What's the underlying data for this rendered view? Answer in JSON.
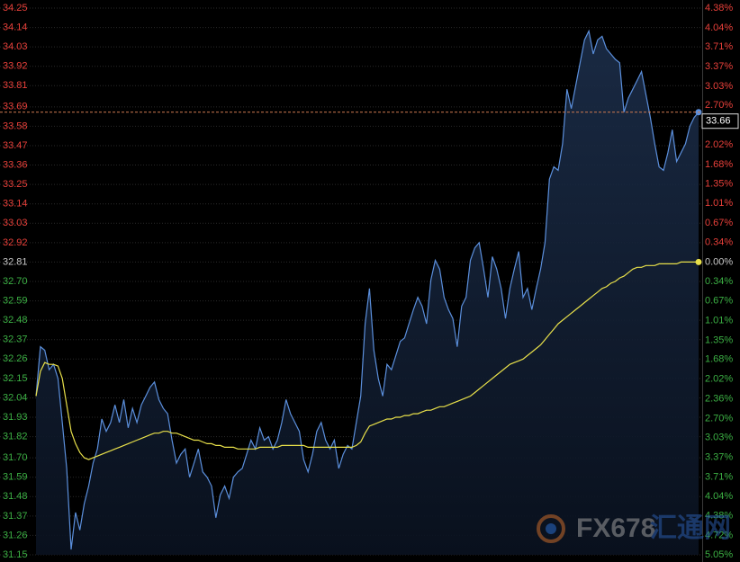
{
  "chart_data": {
    "type": "line",
    "ylim": [
      31.15,
      34.25
    ],
    "yticks": [
      34.25,
      34.14,
      34.03,
      33.92,
      33.81,
      33.69,
      33.58,
      33.47,
      33.36,
      33.25,
      33.14,
      33.03,
      32.92,
      32.81,
      {
        "value": 32.7,
        "label": "32.70"
      },
      32.59,
      32.48,
      32.37,
      32.26,
      32.15,
      32.04,
      31.93,
      31.82,
      {
        "value": 31.7,
        "label": "31.70"
      },
      31.59,
      31.48,
      31.37,
      31.26,
      31.15
    ],
    "y2lim": [
      -5.05,
      4.38
    ],
    "y2ticks": [
      {
        "value": 4.38,
        "label": "4.38%"
      },
      {
        "value": 4.04,
        "label": "4.04%"
      },
      {
        "value": 3.71,
        "label": "3.71%"
      },
      {
        "value": 3.37,
        "label": "3.37%"
      },
      {
        "value": 3.03,
        "label": "3.03%"
      },
      {
        "value": 2.7,
        "label": "2.70%"
      },
      {
        "value": 2.36,
        "label": "2.36%"
      },
      {
        "value": 2.02,
        "label": "2.02%"
      },
      {
        "value": 1.68,
        "label": "1.68%"
      },
      {
        "value": 1.35,
        "label": "1.35%"
      },
      {
        "value": 1.01,
        "label": "1.01%"
      },
      {
        "value": 0.67,
        "label": "0.67%"
      },
      {
        "value": 0.34,
        "label": "0.34%"
      },
      {
        "value": 0,
        "label": "0.00%"
      },
      {
        "value": -0.34,
        "label": "0.34%"
      },
      {
        "value": -0.67,
        "label": "0.67%"
      },
      {
        "value": -1.01,
        "label": "1.01%"
      },
      {
        "value": -1.35,
        "label": "1.35%"
      },
      {
        "value": -1.68,
        "label": "1.68%"
      },
      {
        "value": -2.02,
        "label": "2.02%"
      },
      {
        "value": -2.36,
        "label": "2.36%"
      },
      {
        "value": -2.7,
        "label": "2.70%"
      },
      {
        "value": -3.03,
        "label": "3.03%"
      },
      {
        "value": -3.37,
        "label": "3.37%"
      },
      {
        "value": -3.71,
        "label": "3.71%"
      },
      {
        "value": -4.04,
        "label": "4.04%"
      },
      {
        "value": -4.38,
        "label": "4.38%"
      },
      {
        "value": -4.72,
        "label": "4.72%"
      },
      {
        "value": -5.05,
        "label": "5.05%"
      }
    ],
    "up_color": "#e8403a",
    "down_color": "#3cb044",
    "flat_color": "#c8c8c8",
    "grid": true,
    "last_price": 33.66,
    "series": [
      {
        "color": "#5b8fdc",
        "fill": true,
        "values": [
          32.05,
          32.33,
          32.31,
          32.2,
          32.23,
          32.15,
          31.9,
          31.64,
          31.18,
          31.39,
          31.29,
          31.44,
          31.54,
          31.67,
          31.75,
          31.92,
          31.85,
          31.9,
          32.0,
          31.9,
          32.03,
          31.87,
          31.98,
          31.9,
          32.0,
          32.05,
          32.1,
          32.13,
          32.03,
          31.98,
          31.95,
          31.8,
          31.67,
          31.72,
          31.75,
          31.59,
          31.67,
          31.75,
          31.62,
          31.59,
          31.54,
          31.36,
          31.49,
          31.54,
          31.47,
          31.59,
          31.62,
          31.64,
          31.72,
          31.8,
          31.75,
          31.87,
          31.8,
          31.82,
          31.75,
          31.8,
          31.9,
          32.03,
          31.95,
          31.9,
          31.85,
          31.69,
          31.62,
          31.72,
          31.85,
          31.9,
          31.8,
          31.75,
          31.8,
          31.64,
          31.72,
          31.77,
          31.75,
          31.9,
          32.05,
          32.46,
          32.66,
          32.31,
          32.15,
          32.05,
          32.23,
          32.2,
          32.28,
          32.36,
          32.38,
          32.46,
          32.54,
          32.61,
          32.56,
          32.46,
          32.71,
          32.82,
          32.77,
          32.61,
          32.54,
          32.49,
          32.33,
          32.56,
          32.61,
          32.82,
          32.89,
          32.92,
          32.77,
          32.61,
          32.84,
          32.77,
          32.66,
          32.49,
          32.66,
          32.77,
          32.87,
          32.61,
          32.66,
          32.54,
          32.66,
          32.77,
          32.92,
          33.28,
          33.35,
          33.33,
          33.48,
          33.79,
          33.68,
          33.81,
          33.94,
          34.07,
          34.12,
          33.99,
          34.07,
          34.09,
          34.02,
          33.99,
          33.96,
          33.94,
          33.66,
          33.74,
          33.79,
          33.84,
          33.89,
          33.76,
          33.63,
          33.48,
          33.35,
          33.33,
          33.43,
          33.56,
          33.38,
          33.43,
          33.48,
          33.58,
          33.63,
          33.66
        ]
      },
      {
        "color": "#e8e04a",
        "fill": false,
        "values": [
          32.05,
          32.19,
          32.24,
          32.23,
          32.23,
          32.22,
          32.15,
          32.0,
          31.85,
          31.78,
          31.73,
          31.7,
          31.69,
          31.7,
          31.71,
          31.72,
          31.73,
          31.74,
          31.75,
          31.76,
          31.77,
          31.78,
          31.79,
          31.8,
          31.81,
          31.82,
          31.83,
          31.84,
          31.84,
          31.85,
          31.85,
          31.84,
          31.84,
          31.83,
          31.82,
          31.81,
          31.8,
          31.8,
          31.79,
          31.78,
          31.78,
          31.77,
          31.77,
          31.76,
          31.76,
          31.76,
          31.75,
          31.75,
          31.75,
          31.75,
          31.75,
          31.76,
          31.76,
          31.76,
          31.76,
          31.76,
          31.77,
          31.77,
          31.77,
          31.77,
          31.77,
          31.77,
          31.76,
          31.76,
          31.76,
          31.76,
          31.76,
          31.76,
          31.76,
          31.76,
          31.76,
          31.76,
          31.76,
          31.77,
          31.79,
          31.84,
          31.88,
          31.89,
          31.9,
          31.91,
          31.92,
          31.92,
          31.93,
          31.93,
          31.94,
          31.94,
          31.95,
          31.95,
          31.96,
          31.97,
          31.97,
          31.98,
          31.99,
          31.99,
          32.0,
          32.01,
          32.02,
          32.03,
          32.04,
          32.05,
          32.07,
          32.09,
          32.11,
          32.13,
          32.15,
          32.17,
          32.19,
          32.21,
          32.23,
          32.24,
          32.25,
          32.26,
          32.28,
          32.3,
          32.32,
          32.34,
          32.37,
          32.4,
          32.43,
          32.46,
          32.48,
          32.5,
          32.52,
          32.54,
          32.56,
          32.58,
          32.6,
          32.62,
          32.64,
          32.66,
          32.67,
          32.69,
          32.7,
          32.72,
          32.73,
          32.75,
          32.77,
          32.78,
          32.78,
          32.79,
          32.79,
          32.79,
          32.8,
          32.8,
          32.8,
          32.8,
          32.8,
          32.81,
          32.81,
          32.81,
          32.81,
          32.81
        ]
      }
    ]
  },
  "watermark": {
    "logo": "FX678",
    "name": "汇通网"
  }
}
